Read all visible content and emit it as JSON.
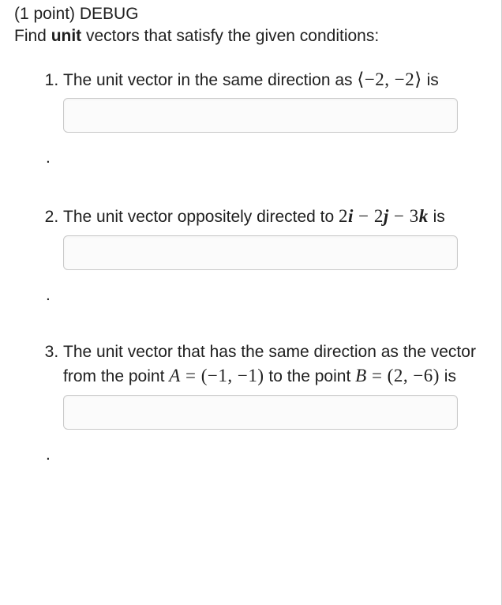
{
  "header": {
    "points_prefix": "(1 point) ",
    "debug": "DEBUG",
    "instruction_pre": "Find ",
    "instruction_bold": "unit",
    "instruction_post": " vectors that satisfy the given conditions:"
  },
  "questions": [
    {
      "text_pre": "The unit vector in the same direction as ",
      "math": "⟨−2, −2⟩",
      "text_post": " is",
      "value": "",
      "period": "."
    },
    {
      "text_pre": "The unit vector oppositely directed to ",
      "math_parts": {
        "expr": "2i − 2j − 3k"
      },
      "text_post": " is",
      "value": "",
      "period": "."
    },
    {
      "text_pre": "The unit vector that has the same direction as the vector from the point ",
      "pointA_label": "A = (−1, −1)",
      "mid_text": " to the point ",
      "pointB_label": "B = (2, −6)",
      "text_post": " is",
      "value": "",
      "period": "."
    }
  ],
  "style": {
    "text_color": "#202020",
    "input_border": "#c9c9c9",
    "input_bg": "#fbfbfb",
    "body_bg": "#ffffff",
    "font_size_body": 21,
    "font_size_math": 23
  }
}
